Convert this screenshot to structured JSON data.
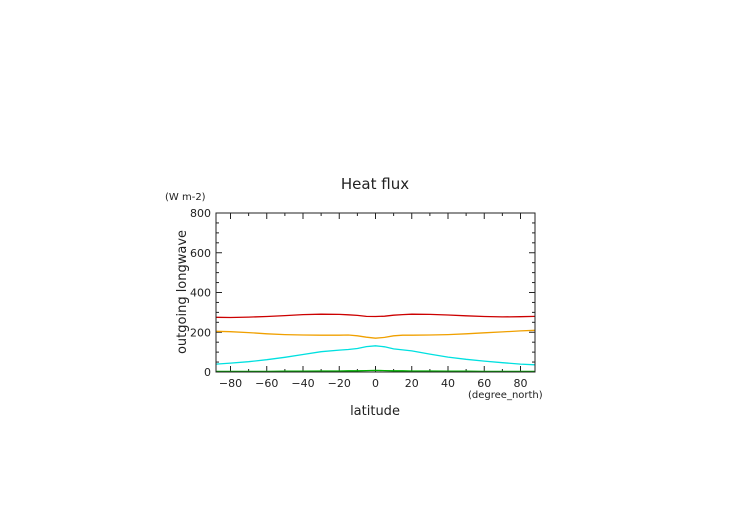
{
  "chart_data": {
    "type": "line",
    "title": "Heat flux",
    "xlabel": "latitude",
    "ylabel": "outgoing longwave",
    "x_unit": "(degree_north)",
    "y_unit": "(W m-2)",
    "xlim": [
      -88,
      88
    ],
    "ylim": [
      0,
      800
    ],
    "x_ticks": [
      -80,
      -60,
      -40,
      -20,
      0,
      20,
      40,
      60,
      80
    ],
    "y_ticks": [
      0,
      200,
      400,
      600,
      800
    ],
    "grid": false,
    "x": [
      -88,
      -80,
      -70,
      -60,
      -50,
      -40,
      -30,
      -20,
      -15,
      -10,
      -5,
      0,
      5,
      10,
      15,
      20,
      30,
      40,
      50,
      60,
      70,
      80,
      88
    ],
    "series": [
      {
        "color": "#cc0000",
        "values": [
          275,
          274,
          276,
          279,
          284,
          289,
          291,
          290,
          288,
          285,
          280,
          279,
          281,
          286,
          289,
          291,
          290,
          287,
          283,
          279,
          277,
          278,
          280
        ]
      },
      {
        "color": "#f0a000",
        "values": [
          205,
          203,
          198,
          192,
          188,
          186,
          185,
          185,
          186,
          182,
          175,
          170,
          174,
          182,
          185,
          185,
          186,
          188,
          192,
          197,
          202,
          207,
          210
        ]
      },
      {
        "color": "#00e0e0",
        "values": [
          40,
          45,
          52,
          62,
          74,
          88,
          102,
          110,
          113,
          118,
          128,
          132,
          127,
          116,
          111,
          106,
          90,
          75,
          64,
          55,
          47,
          40,
          36
        ]
      },
      {
        "color": "#00b000",
        "values": [
          3,
          3,
          3,
          3,
          4,
          4,
          5,
          5,
          6,
          6,
          7,
          8,
          7,
          6,
          6,
          5,
          5,
          4,
          4,
          3,
          3,
          3,
          3
        ]
      }
    ]
  }
}
